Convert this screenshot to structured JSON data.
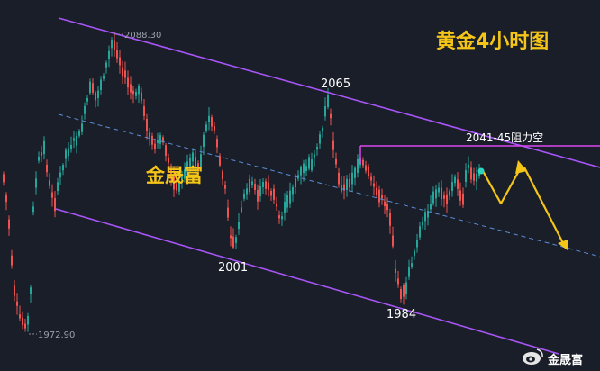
{
  "chart_data": {
    "type": "candlestick",
    "title": "黄金4小时图",
    "symbol_period": "4小时",
    "colors": {
      "background": "#1a1e29",
      "up_candle": "#26a69a",
      "down_candle": "#ef5350",
      "channel_line": "#a855f7",
      "midline": "#5b8dd6",
      "resistance_line": "#d946ef",
      "forecast_arrow": "#f5c518",
      "title": "#f5c518",
      "watermark": "#f5c518",
      "label_text": "#ffffff"
    },
    "annotations": {
      "high_price": "2088.30",
      "low_price": "1972.90",
      "level_2065": "2065",
      "level_2001": "2001",
      "level_1984": "1984",
      "resistance_zone": "2041-45阻力空"
    },
    "watermark": "金晟富",
    "footer_brand": "金晟富",
    "footer_icon": "weibo-icon",
    "forecast": "price rises to the 2041-45 resistance, then falls along the descending channel",
    "grid": false
  }
}
